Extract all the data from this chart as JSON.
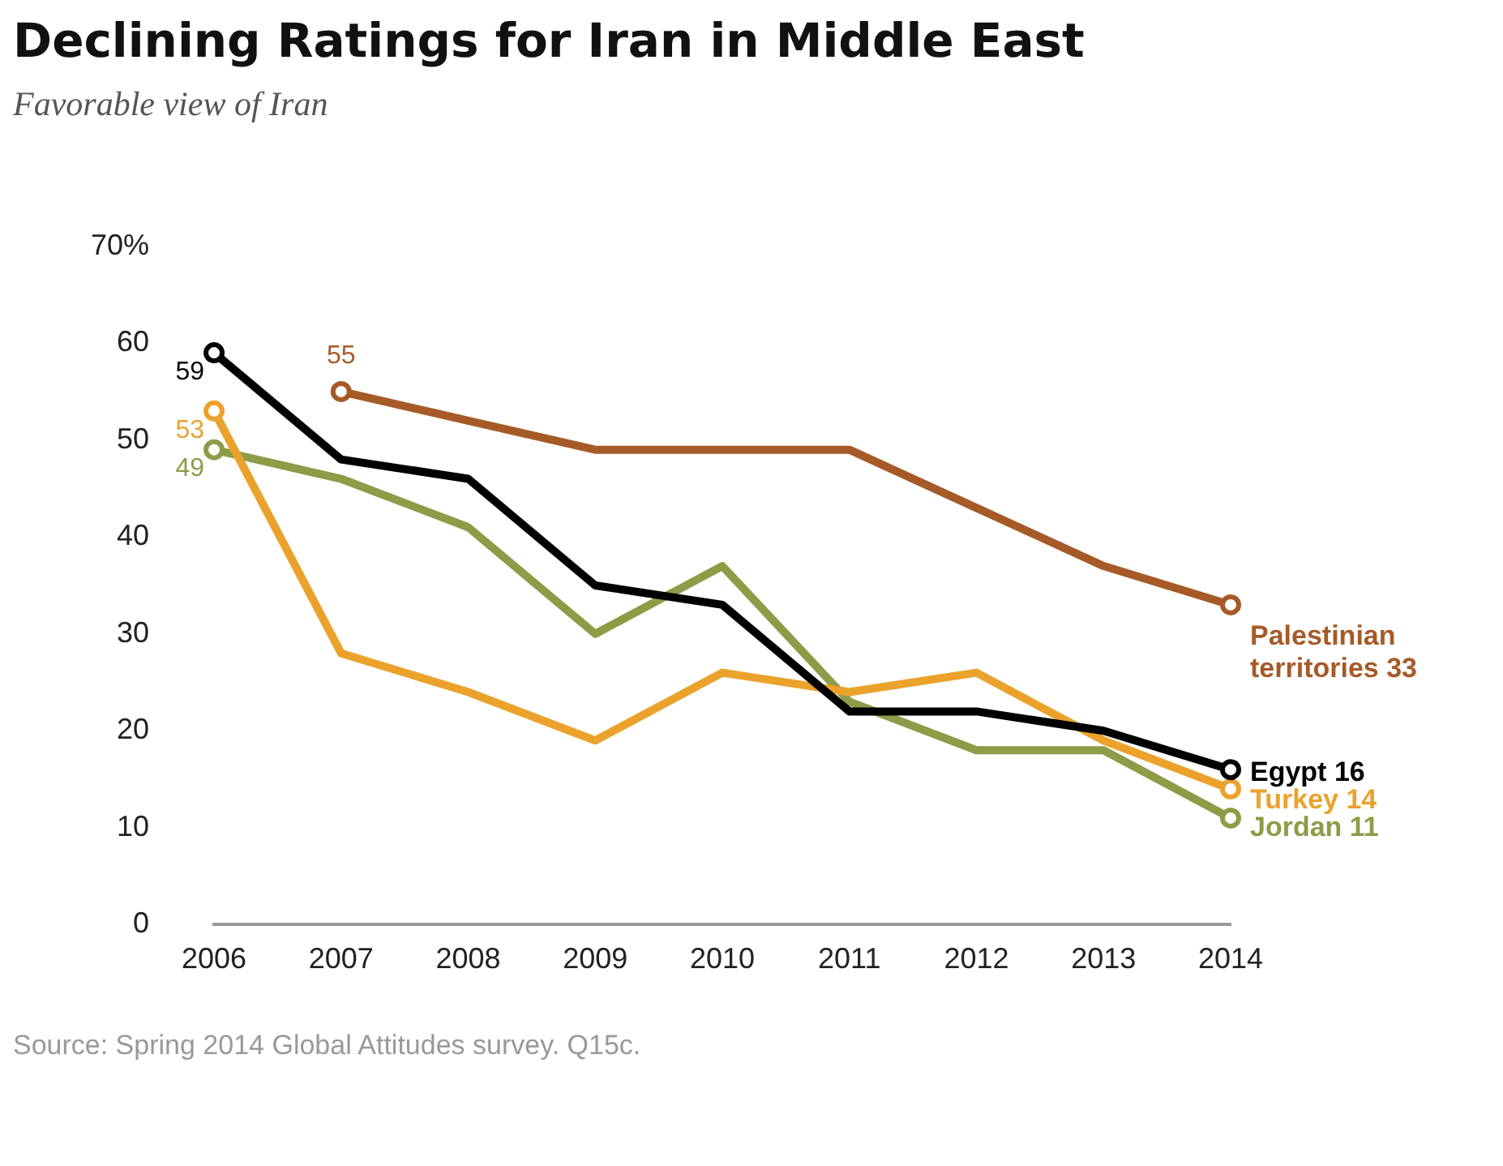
{
  "chart_data": {
    "type": "line",
    "title": "Declining Ratings for Iran in Middle East",
    "subtitle": "Favorable view of Iran",
    "categories": [
      "2006",
      "2007",
      "2008",
      "2009",
      "2010",
      "2011",
      "2012",
      "2013",
      "2014"
    ],
    "series": [
      {
        "name": "Palestinian territories",
        "color": "#a65a27",
        "values": [
          null,
          55,
          52,
          49,
          49,
          49,
          43,
          37,
          33
        ],
        "value_labels": [
          null,
          "55",
          null,
          null,
          null,
          null,
          null,
          null,
          "33"
        ]
      },
      {
        "name": "Egypt",
        "color": "#000000",
        "values": [
          59,
          48,
          46,
          35,
          33,
          22,
          22,
          20,
          16
        ],
        "value_labels": [
          "59",
          null,
          null,
          null,
          null,
          null,
          null,
          null,
          "16"
        ]
      },
      {
        "name": "Turkey",
        "color": "#eba22d",
        "values": [
          53,
          28,
          24,
          19,
          26,
          24,
          26,
          19,
          14
        ],
        "value_labels": [
          "53",
          null,
          null,
          null,
          null,
          null,
          null,
          null,
          "14"
        ]
      },
      {
        "name": "Jordan",
        "color": "#8c9c47",
        "values": [
          49,
          46,
          41,
          30,
          37,
          23,
          18,
          18,
          11
        ],
        "value_labels": [
          "49",
          null,
          null,
          null,
          null,
          null,
          null,
          null,
          "11"
        ]
      }
    ],
    "ylim": [
      0,
      70
    ],
    "yticks": [
      0,
      10,
      20,
      30,
      40,
      50,
      60,
      {
        "value": 70,
        "label": "70%"
      }
    ],
    "grid": false,
    "legend": false,
    "line_style": "solid",
    "annotations": [
      "Source: Spring 2014 Global Attitudes survey. Q15c."
    ]
  }
}
